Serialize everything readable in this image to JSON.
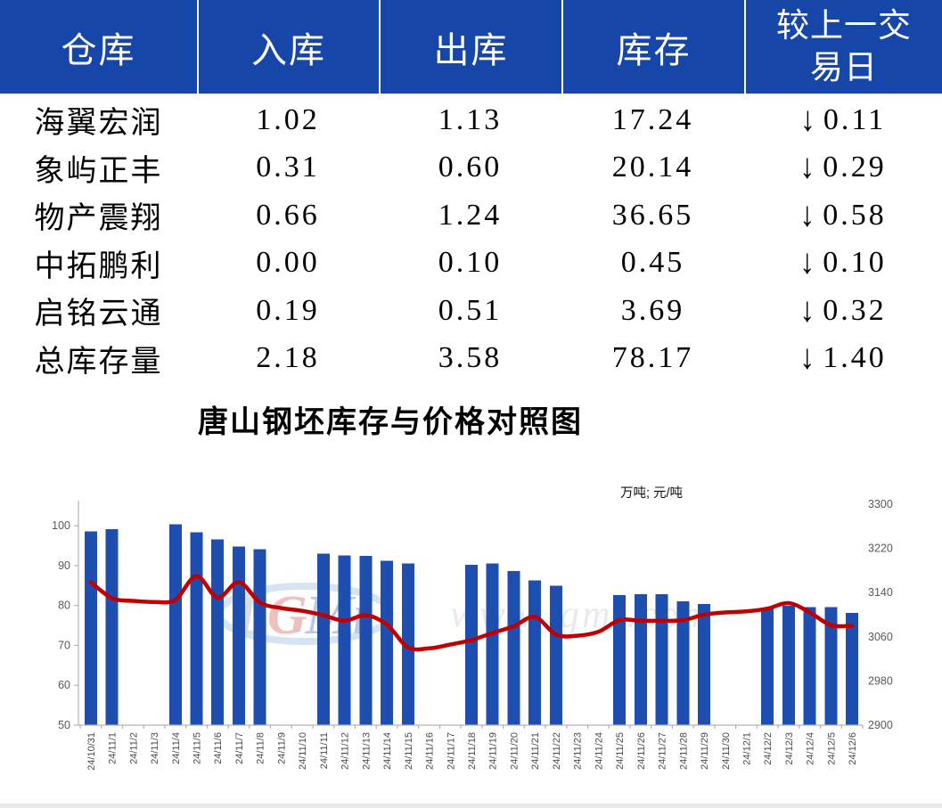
{
  "table": {
    "columns": [
      "仓库",
      "入库",
      "出库",
      "库存",
      "较上一交易日"
    ],
    "down_arrow": "↓",
    "rows": [
      {
        "warehouse": "海翼宏润",
        "inbound": "1.02",
        "outbound": "1.13",
        "stock": "17.24",
        "change": "0.11"
      },
      {
        "warehouse": "象屿正丰",
        "inbound": "0.31",
        "outbound": "0.60",
        "stock": "20.14",
        "change": "0.29"
      },
      {
        "warehouse": "物产震翔",
        "inbound": "0.66",
        "outbound": "1.24",
        "stock": "36.65",
        "change": "0.58"
      },
      {
        "warehouse": "中拓鹏利",
        "inbound": "0.00",
        "outbound": "0.10",
        "stock": "0.45",
        "change": "0.10"
      },
      {
        "warehouse": "启铭云通",
        "inbound": "0.19",
        "outbound": "0.51",
        "stock": "3.69",
        "change": "0.32"
      },
      {
        "warehouse": "总库存量",
        "inbound": "2.18",
        "outbound": "3.58",
        "stock": "78.17",
        "change": "1.40"
      }
    ]
  },
  "chart_title": "唐山钢坯库存与价格对照图",
  "units_label": "万吨; 元/吨",
  "watermark": {
    "logo_text": "LGMi",
    "url_text": "www.lgmi.com"
  },
  "colors": {
    "header_blue": "#1646a8",
    "bar_blue": "#1e4eb0",
    "line_red": "#c00000",
    "change_green": "#16b25a",
    "axis_gray": "#b3b3b3",
    "axis_label_gray": "#595959",
    "x_label_gray": "#4a4a4a"
  },
  "chart_data": {
    "type": "bar",
    "title": "唐山钢坯库存与价格对照图",
    "ylabel": "万吨; 元/吨",
    "grid": false,
    "legend": "none",
    "categories": [
      "24/10/31",
      "24/11/1",
      "24/11/2",
      "24/11/3",
      "24/11/4",
      "24/11/5",
      "24/11/6",
      "24/11/7",
      "24/11/8",
      "24/11/9",
      "24/11/10",
      "24/11/11",
      "24/11/12",
      "24/11/13",
      "24/11/14",
      "24/11/15",
      "24/11/16",
      "24/11/17",
      "24/11/18",
      "24/11/19",
      "24/11/20",
      "24/11/21",
      "24/11/22",
      "24/11/23",
      "24/11/24",
      "24/11/25",
      "24/11/26",
      "24/11/27",
      "24/11/28",
      "24/11/29",
      "24/11/30",
      "24/12/1",
      "24/12/2",
      "24/12/3",
      "24/12/4",
      "24/12/5",
      "24/12/6"
    ],
    "series": [
      {
        "name": "库存(万吨)",
        "type": "bar",
        "axis": "left",
        "color": "#1e4eb0",
        "values": [
          98.6,
          99.1,
          null,
          null,
          100.4,
          98.4,
          96.6,
          94.8,
          94.1,
          null,
          null,
          93.0,
          92.5,
          92.4,
          91.2,
          90.6,
          null,
          null,
          90.2,
          90.6,
          88.6,
          86.3,
          85.0,
          null,
          null,
          82.6,
          82.8,
          82.8,
          81.1,
          80.4,
          null,
          null,
          79.3,
          79.9,
          79.6,
          79.6,
          78.2
        ]
      },
      {
        "name": "价格(元/吨)",
        "type": "line",
        "axis": "right",
        "color": "#c00000",
        "values": [
          3159,
          3130,
          3125,
          3123,
          3127,
          3170,
          3131,
          3159,
          3122,
          3112,
          3107,
          3099,
          3089,
          3099,
          3082,
          3041,
          3039,
          3046,
          3054,
          3067,
          3079,
          3096,
          3064,
          3062,
          3069,
          3090,
          3089,
          3089,
          3090,
          3100,
          3104,
          3106,
          3111,
          3121,
          3104,
          3081,
          3080
        ]
      }
    ],
    "left_axis": {
      "min": 50,
      "max": 105.4,
      "ticks": [
        50,
        60,
        70,
        80,
        90,
        100
      ]
    },
    "right_axis": {
      "min": 2900,
      "max": 3300,
      "ticks": [
        2900,
        2980,
        3060,
        3140,
        3220,
        3300
      ]
    }
  }
}
